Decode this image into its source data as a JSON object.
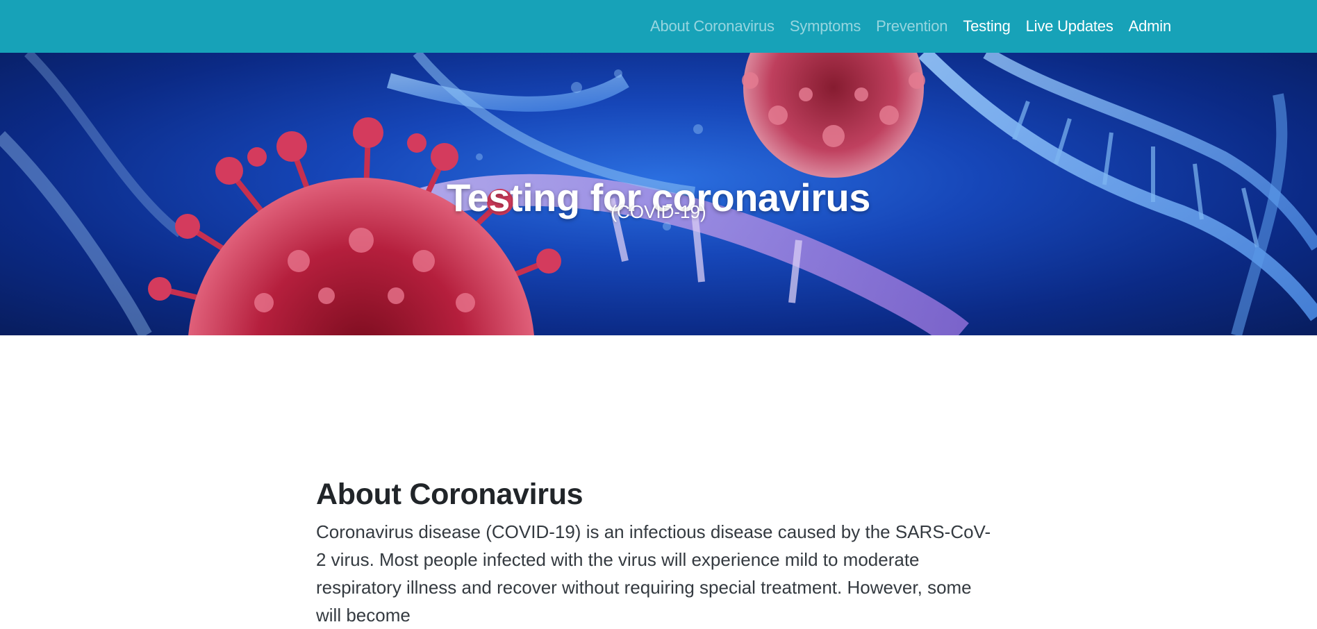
{
  "nav": {
    "items": [
      {
        "label": "About Coronavirus",
        "active": false
      },
      {
        "label": "Symptoms",
        "active": false
      },
      {
        "label": "Prevention",
        "active": false
      },
      {
        "label": "Testing",
        "active": true
      },
      {
        "label": "Live Updates",
        "active": true
      },
      {
        "label": "Admin",
        "active": true
      }
    ]
  },
  "hero": {
    "title": "Testing for coronavirus",
    "subtitle": "(COVID-19)",
    "image": "virus-dna-illustration"
  },
  "about": {
    "heading": "About Coronavirus",
    "text": "Coronavirus disease (COVID-19) is an infectious disease caused by the SARS-CoV-2 virus. Most people infected with the virus will experience mild to moderate respiratory illness and recover without requiring special treatment. However, some will become"
  },
  "colors": {
    "navbar": "#17a2b8",
    "nav_inactive": "rgba(255,255,255,0.55)",
    "nav_active": "#ffffff",
    "heading": "#212529"
  }
}
